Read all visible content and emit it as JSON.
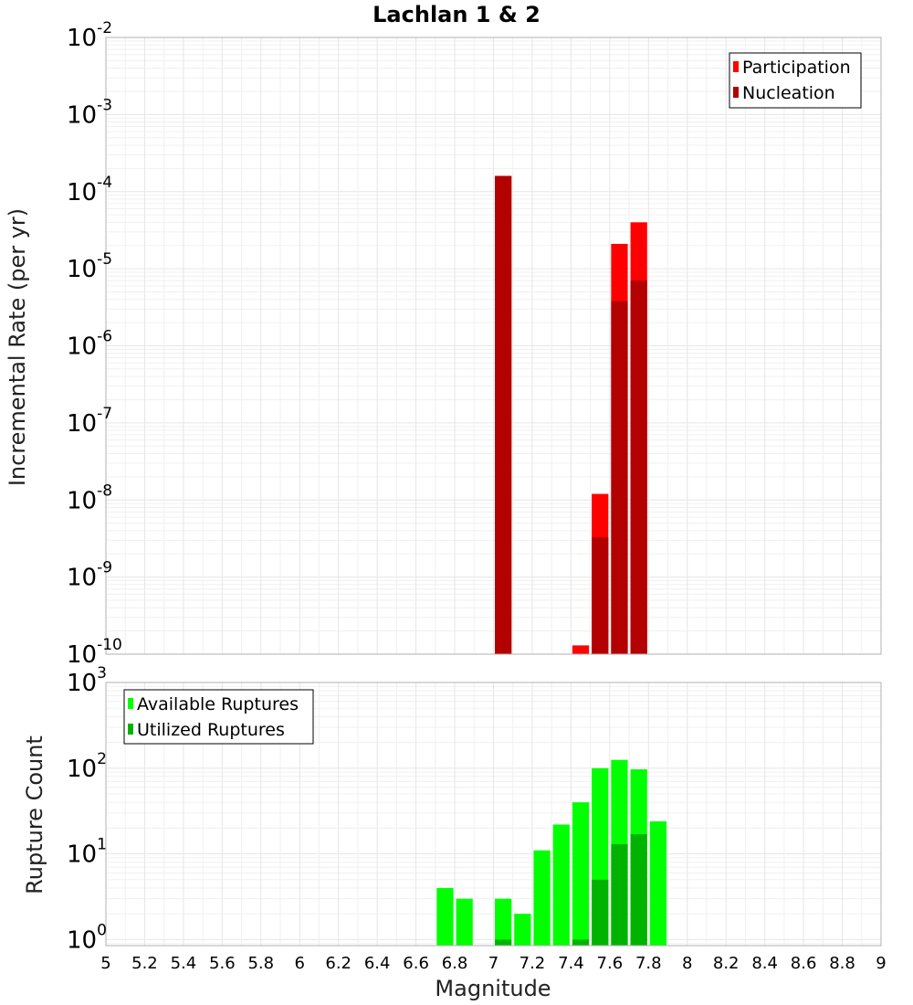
{
  "chart_data": [
    {
      "type": "bar",
      "title": "Lachlan 1 & 2",
      "xlabel": "",
      "ylabel": "Incremental Rate (per yr)",
      "yscale": "log",
      "ylim_exp": [
        -10,
        -2
      ],
      "xlim": [
        5,
        9
      ],
      "bin_width": 0.1,
      "y_tick_labels": [
        {
          "base": "10",
          "exp": "-2"
        },
        {
          "base": "10",
          "exp": "-3"
        },
        {
          "base": "10",
          "exp": "-4"
        },
        {
          "base": "10",
          "exp": "-5"
        },
        {
          "base": "10",
          "exp": "-6"
        },
        {
          "base": "10",
          "exp": "-7"
        },
        {
          "base": "10",
          "exp": "-8"
        },
        {
          "base": "10",
          "exp": "-9"
        },
        {
          "base": "10",
          "exp": "-10"
        }
      ],
      "legend": [
        {
          "label": "Participation",
          "color": "#ff0000"
        },
        {
          "label": "Nucleation",
          "color": "#b30000"
        }
      ],
      "legend_position": "top-right",
      "series": [
        {
          "name": "Participation",
          "color": "#ff0000",
          "x": [
            7.05,
            7.45,
            7.55,
            7.65,
            7.75
          ],
          "values": [
            0.00016,
            1.3e-10,
            1.2e-08,
            2.1e-05,
            4e-05
          ]
        },
        {
          "name": "Nucleation",
          "color": "#b30000",
          "x": [
            7.05,
            7.55,
            7.65,
            7.75
          ],
          "values": [
            0.00016,
            3.3e-09,
            3.8e-06,
            7e-06
          ]
        }
      ]
    },
    {
      "type": "bar",
      "title": "",
      "xlabel": "Magnitude",
      "ylabel": "Rupture Count",
      "yscale": "log",
      "ylim_exp": [
        -0.07,
        3
      ],
      "xlim": [
        5,
        9
      ],
      "bin_width": 0.1,
      "y_tick_labels": [
        {
          "base": "10",
          "exp": "3"
        },
        {
          "base": "10",
          "exp": "2"
        },
        {
          "base": "10",
          "exp": "1"
        },
        {
          "base": "10",
          "exp": "0"
        }
      ],
      "x_tick_labels": [
        "5",
        "5.2",
        "5.4",
        "5.6",
        "5.8",
        "6",
        "6.2",
        "6.4",
        "6.6",
        "6.8",
        "7",
        "7.2",
        "7.4",
        "7.6",
        "7.8",
        "8",
        "8.2",
        "8.4",
        "8.6",
        "8.8",
        "9"
      ],
      "legend": [
        {
          "label": "Available Ruptures",
          "color": "#00ff00"
        },
        {
          "label": "Utilized Ruptures",
          "color": "#00b300"
        }
      ],
      "legend_position": "top-left",
      "series": [
        {
          "name": "Available Ruptures",
          "color": "#00ff00",
          "x": [
            6.75,
            6.85,
            7.05,
            7.15,
            7.25,
            7.35,
            7.45,
            7.55,
            7.65,
            7.75,
            7.85
          ],
          "values": [
            4,
            3,
            3,
            2,
            11,
            22,
            40,
            100,
            125,
            97,
            24
          ]
        },
        {
          "name": "Utilized Ruptures",
          "color": "#00b300",
          "x": [
            7.05,
            7.45,
            7.55,
            7.65,
            7.75
          ],
          "values": [
            1,
            1,
            5,
            13,
            17
          ]
        }
      ]
    }
  ]
}
